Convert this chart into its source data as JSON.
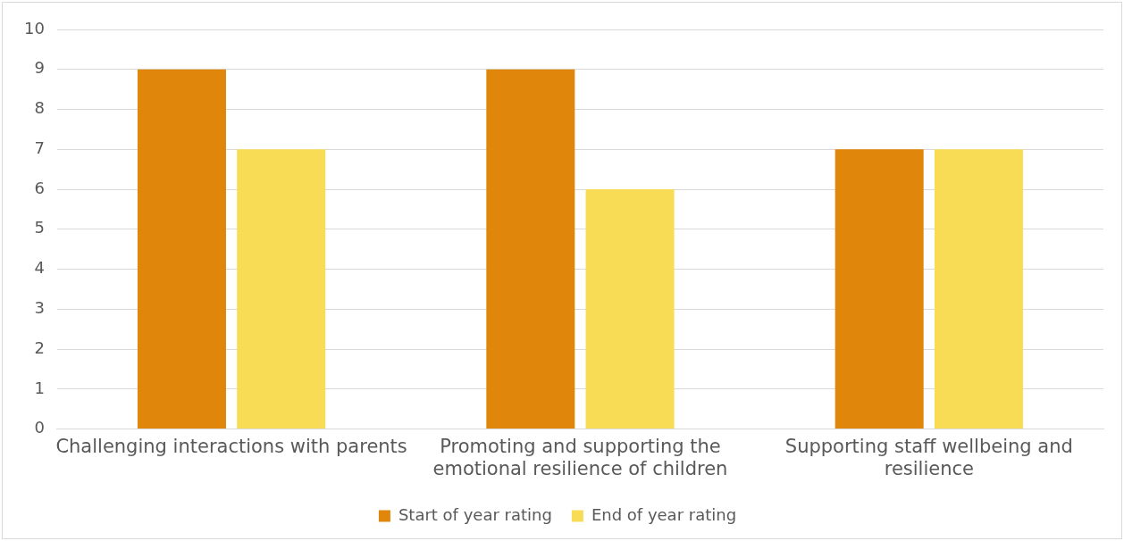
{
  "chart_data": {
    "type": "bar",
    "categories": [
      "Challenging interactions with parents",
      "Promoting and supporting the emotional resilience of children",
      "Supporting staff wellbeing and resilience"
    ],
    "series": [
      {
        "name": "Start of year rating",
        "color": "#e0860a",
        "values": [
          9,
          9,
          7
        ]
      },
      {
        "name": "End of year rating",
        "color": "#f9dc55",
        "values": [
          7,
          6,
          7
        ]
      }
    ],
    "ylim": [
      0,
      10
    ],
    "yticks": [
      0,
      1,
      2,
      3,
      4,
      5,
      6,
      7,
      8,
      9,
      10
    ],
    "grid": "y",
    "legend": "bottom"
  }
}
